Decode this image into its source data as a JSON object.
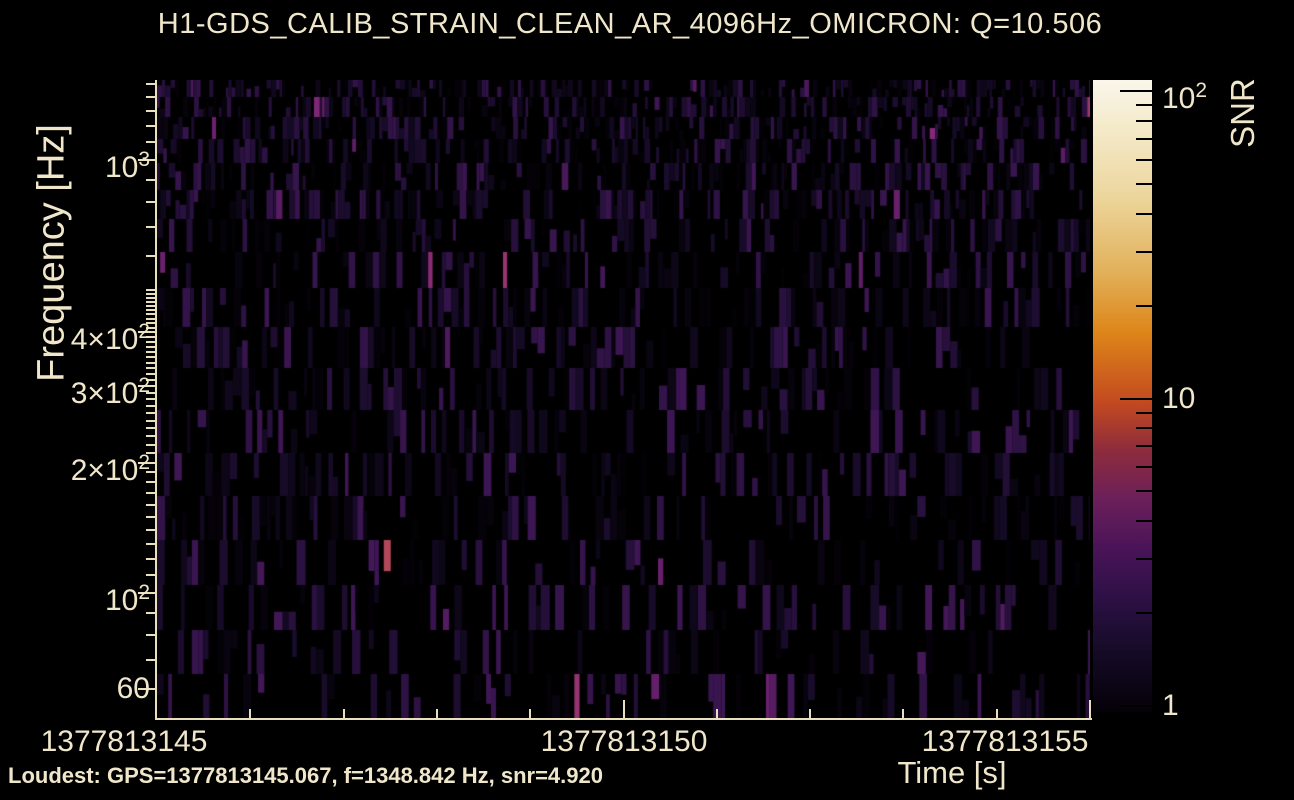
{
  "title": "H1-GDS_CALIB_STRAIN_CLEAN_AR_4096Hz_OMICRON: Q=10.506",
  "status_line": "Loudest: GPS=1377813145.067, f=1348.842 Hz, snr=4.920",
  "colors": {
    "background": "#000000",
    "text_cream": "#f0e7cb",
    "axis_cream": "#e9dfbd",
    "colorbar_tick": "#000000"
  },
  "chart_data": {
    "type": "heatmap",
    "title": "H1-GDS_CALIB_STRAIN_CLEAN_AR_4096Hz_OMICRON: Q=10.506",
    "xlabel": "Time [s]",
    "ylabel": "Frequency [Hz]",
    "zlabel": "SNR",
    "x_scale": "linear",
    "y_scale": "log",
    "z_scale": "log",
    "x_range_gps_s": [
      1377813145,
      1377813155
    ],
    "y_range_hz": [
      51.5,
      1531
    ],
    "z_range_snr": [
      1,
      100
    ],
    "grid": false,
    "legend_position": "right-colorbar",
    "xticks": [
      {
        "v": 1377813145,
        "label": "1377813145"
      },
      {
        "v": 1377813150,
        "label": "1377813150"
      },
      {
        "v": 1377813155,
        "label": "1377813155"
      }
    ],
    "yticks": [
      {
        "v": 60,
        "base": "60",
        "exp": ""
      },
      {
        "v": 100,
        "base": "10",
        "exp": "2"
      },
      {
        "v": 200,
        "base": "2×10",
        "exp": "2"
      },
      {
        "v": 300,
        "base": "3×10",
        "exp": "2"
      },
      {
        "v": 400,
        "base": "4×10",
        "exp": "2"
      },
      {
        "v": 1000,
        "base": "10",
        "exp": "3"
      }
    ],
    "zticks": [
      {
        "v": 1,
        "base": "1",
        "exp": ""
      },
      {
        "v": 10,
        "base": "10",
        "exp": ""
      },
      {
        "v": 100,
        "base": "10",
        "exp": "2"
      }
    ],
    "loudest_event": {
      "gps_s": 1377813145.067,
      "frequency_hz": 1348.842,
      "snr": 4.92
    },
    "colorbar_gradient_bottom_to_top": [
      {
        "pos": 0.0,
        "color": "#050108"
      },
      {
        "pos": 0.1,
        "color": "#160b28"
      },
      {
        "pos": 0.18,
        "color": "#2d1045"
      },
      {
        "pos": 0.26,
        "color": "#4a1458"
      },
      {
        "pos": 0.335,
        "color": "#6b1f5b"
      },
      {
        "pos": 0.415,
        "color": "#8e2c3c"
      },
      {
        "pos": 0.49,
        "color": "#c34a20"
      },
      {
        "pos": 0.6,
        "color": "#dd8519"
      },
      {
        "pos": 0.7,
        "color": "#e2b25c"
      },
      {
        "pos": 0.82,
        "color": "#edd79f"
      },
      {
        "pos": 0.92,
        "color": "#f4e9c8"
      },
      {
        "pos": 1.0,
        "color": "#faf6ea"
      }
    ],
    "tile_colormap_low_to_high": [
      {
        "v": 0.0,
        "color": "#000000"
      },
      {
        "v": 0.18,
        "color": "#140a24"
      },
      {
        "v": 0.35,
        "color": "#29113f"
      },
      {
        "v": 0.5,
        "color": "#3d1653"
      },
      {
        "v": 0.65,
        "color": "#591d63"
      },
      {
        "v": 0.78,
        "color": "#7c2577"
      },
      {
        "v": 0.88,
        "color": "#a03a6e"
      },
      {
        "v": 1.0,
        "color": "#c75a45"
      }
    ]
  }
}
